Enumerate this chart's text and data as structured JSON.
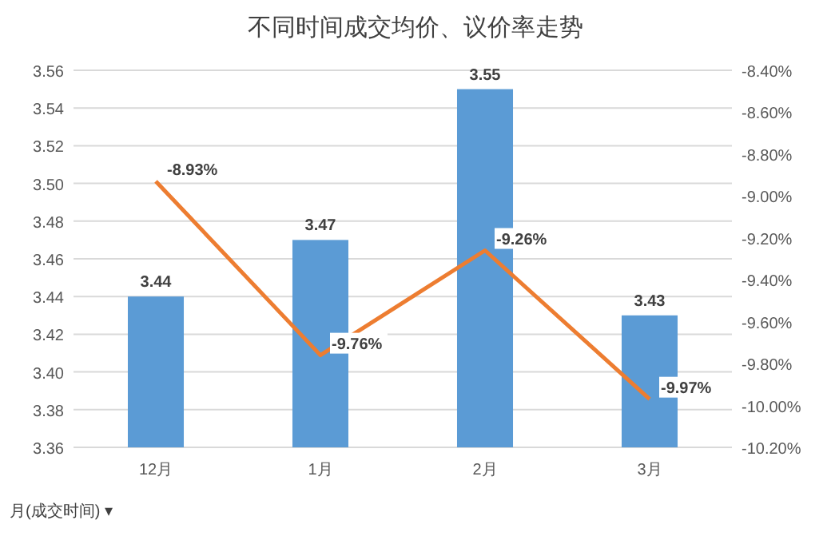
{
  "chart_data": {
    "type": "bar",
    "title": "不同时间成交均价、议价率走势",
    "categories": [
      "12月",
      "1月",
      "2月",
      "3月"
    ],
    "series": [
      {
        "color": "#5b9bd5",
        "values": [
          3.44,
          3.47,
          3.55,
          3.43
        ]
      },
      {
        "type": "line",
        "axis": "y2",
        "color": "#ed7d31",
        "values": [
          -8.93,
          -9.76,
          -9.26,
          -9.97
        ],
        "value_labels": [
          "-8.93%",
          "-9.76%",
          "-9.26%",
          "-9.97%"
        ]
      }
    ],
    "data_labels": true,
    "ylim": [
      3.36,
      3.56
    ],
    "yticks": [
      {
        "value": 3.36,
        "label": "3.36"
      },
      {
        "value": 3.38,
        "label": "3.38"
      },
      {
        "value": 3.4,
        "label": "3.40"
      },
      {
        "value": 3.42,
        "label": "3.42"
      },
      {
        "value": 3.44,
        "label": "3.44"
      },
      {
        "value": 3.46,
        "label": "3.46"
      },
      {
        "value": 3.48,
        "label": "3.48"
      },
      {
        "value": 3.5,
        "label": "3.50"
      },
      {
        "value": 3.52,
        "label": "3.52"
      },
      {
        "value": 3.54,
        "label": "3.54"
      },
      {
        "value": 3.56,
        "label": "3.56"
      }
    ],
    "y2lim": [
      -10.2,
      -8.4
    ],
    "y2ticks": [
      {
        "value": -8.4,
        "label": "-8.40%"
      },
      {
        "value": -8.6,
        "label": "-8.60%"
      },
      {
        "value": -8.8,
        "label": "-8.80%"
      },
      {
        "value": -9.0,
        "label": "-9.00%"
      },
      {
        "value": -9.2,
        "label": "-9.20%"
      },
      {
        "value": -9.4,
        "label": "-9.40%"
      },
      {
        "value": -9.6,
        "label": "-9.60%"
      },
      {
        "value": -9.8,
        "label": "-9.80%"
      },
      {
        "value": -10.0,
        "label": "-10.00%"
      },
      {
        "value": -10.2,
        "label": "-10.20%"
      }
    ],
    "grid": "y",
    "marker": "none",
    "line_style": "solid",
    "annotations": [
      "月(成交时间) ▾"
    ]
  }
}
